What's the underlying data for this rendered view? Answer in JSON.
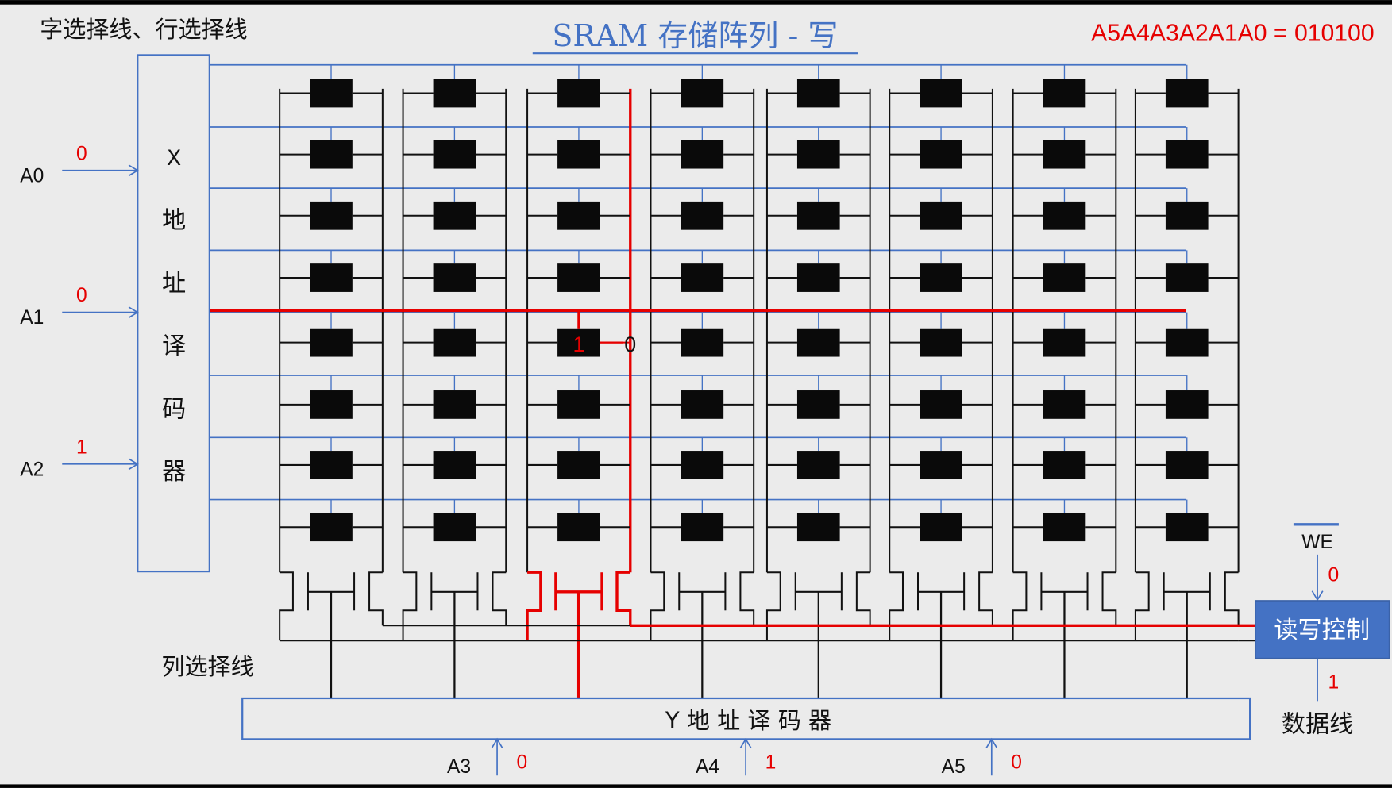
{
  "header": {
    "left_label": "字选择线、行选择线",
    "title": "SRAM 存储阵列 - 写",
    "address": "A5A4A3A2A1A0 = 010100"
  },
  "x_decoder": {
    "chars": [
      "X",
      "地",
      "址",
      "译",
      "码",
      "器"
    ],
    "inputs": [
      {
        "label": "A0",
        "bit": "0"
      },
      {
        "label": "A1",
        "bit": "0"
      },
      {
        "label": "A2",
        "bit": "1"
      }
    ]
  },
  "y_decoder": {
    "label": "Y 地 址 译 码 器",
    "inputs": [
      {
        "label": "A3",
        "bit": "0"
      },
      {
        "label": "A4",
        "bit": "1"
      },
      {
        "label": "A5",
        "bit": "0"
      }
    ]
  },
  "column_select_label": "列选择线",
  "rw_control": {
    "label": "读写控制",
    "we_label": "WE",
    "we_bit": "0",
    "data_bit": "1",
    "data_line_label": "数据线"
  },
  "array": {
    "rows": 8,
    "cols": 8,
    "selected_row": 4,
    "selected_col": 2,
    "cell_value": "1",
    "cell_complement": "0"
  },
  "colors": {
    "background": "#ebebeb",
    "wire": "#111111",
    "word_line": "#4472c4",
    "selected": "#e60000",
    "title": "#4472c4",
    "control_fill": "#4472c4"
  }
}
